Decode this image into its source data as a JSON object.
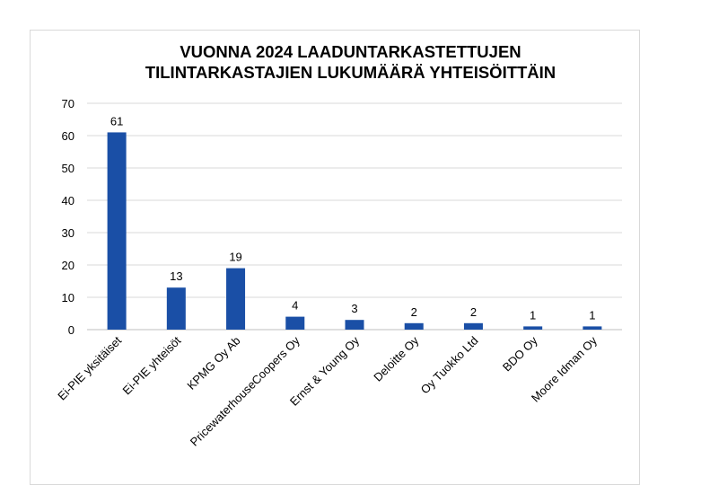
{
  "chart_data": {
    "type": "bar",
    "title_lines": [
      "VUONNA 2024 LAADUNTARKASTETTUJEN",
      "TILINTARKASTAJIEN LUKUMÄÄRÄ YHTEISÖITTÄIN"
    ],
    "categories": [
      "Ei-PIE yksitäiset",
      "Ei-PIE yhteisöt",
      "KPMG Oy Ab",
      "PricewaterhouseCoopers Oy",
      "Ernst & Young Oy",
      "Deloitte Oy",
      "Oy Tuokko Ltd",
      "BDO Oy",
      "Moore Idman Oy"
    ],
    "values": [
      61,
      13,
      19,
      4,
      3,
      2,
      2,
      1,
      1
    ],
    "ylim": [
      0,
      70
    ],
    "yticks": [
      0,
      10,
      20,
      30,
      40,
      50,
      60,
      70
    ],
    "grid": true,
    "legend": "none",
    "data_labels": true,
    "bar_color": "#1a4fa6",
    "grid_color": "#d9d9d9"
  }
}
